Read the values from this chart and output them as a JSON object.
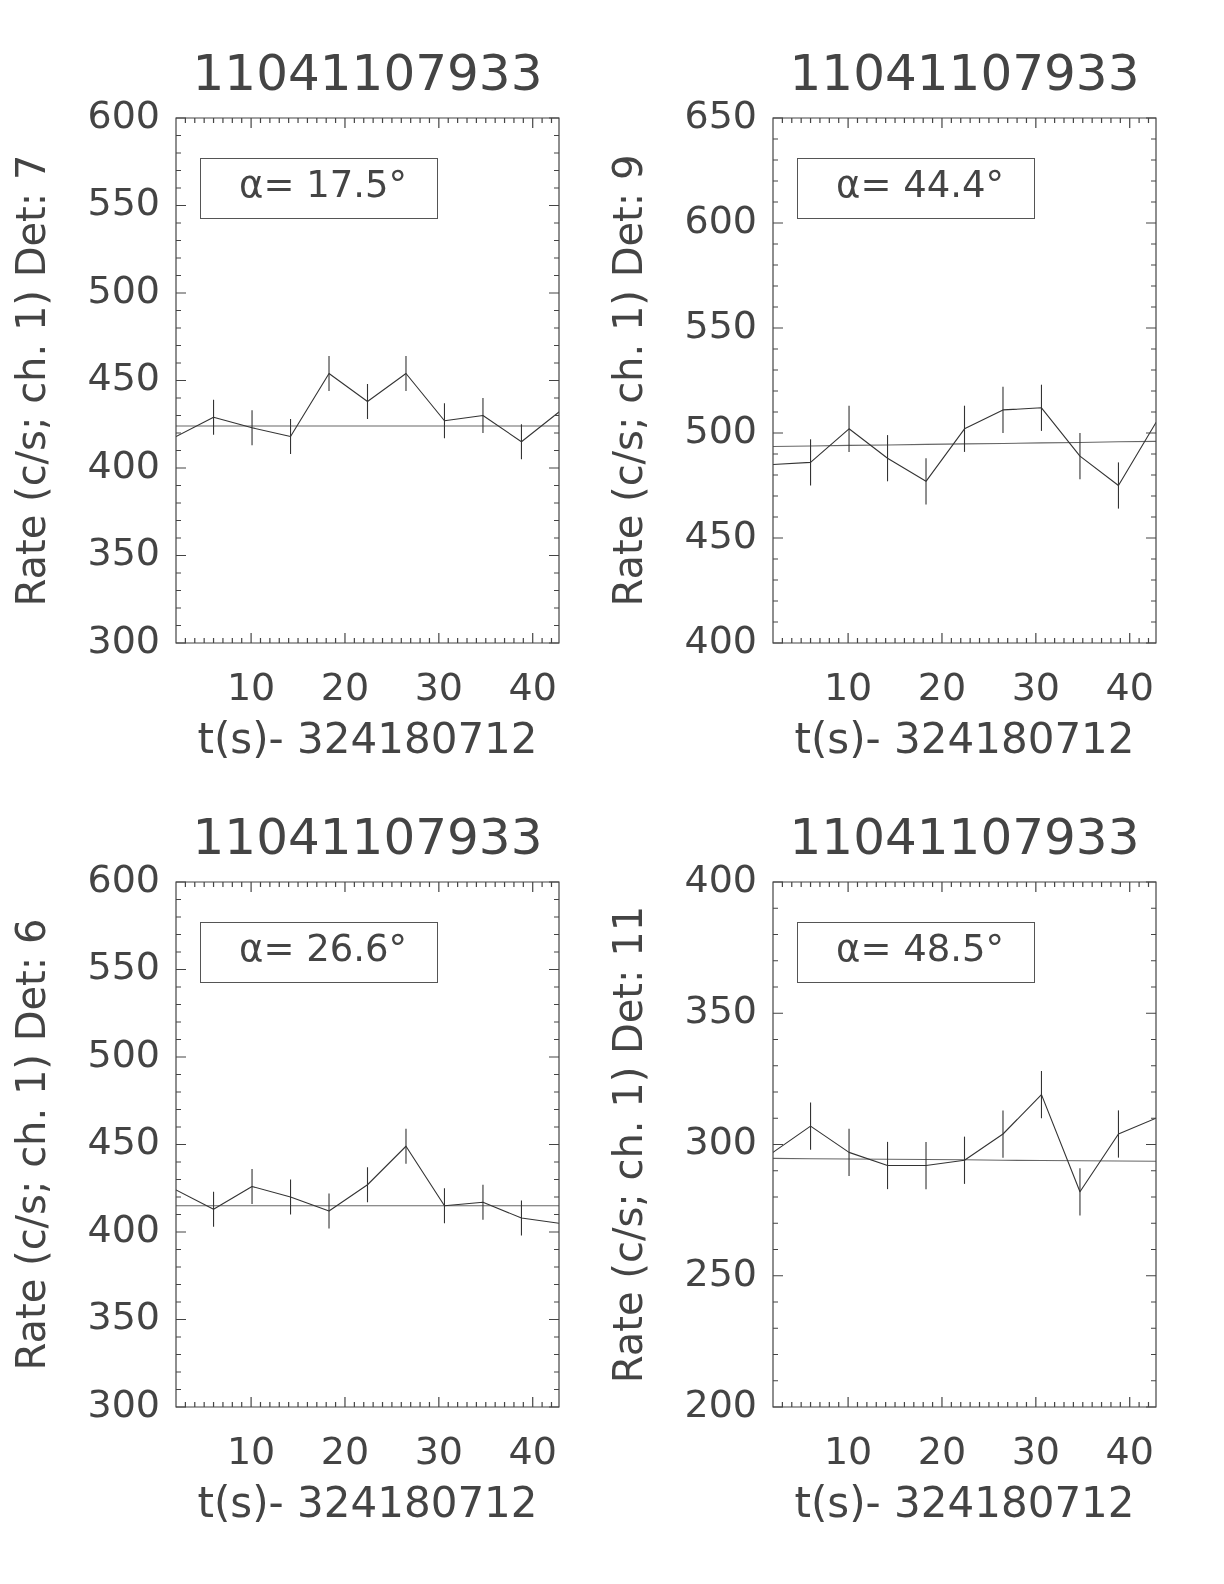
{
  "chart_data": [
    {
      "type": "line",
      "title": "11041107933",
      "xlabel": "t(s)- 324180712",
      "ylabel": "Rate (c/s; ch. 1) Det: 7",
      "annotations": [
        "α= 17.5°"
      ],
      "marker": "none",
      "x": [
        2,
        6,
        10.1,
        14.2,
        18.3,
        22.4,
        26.5,
        30.6,
        34.7,
        38.8,
        42.8
      ],
      "series": [
        {
          "color": "#333333",
          "values": [
            418,
            429,
            423,
            418,
            454,
            438,
            454,
            427,
            430,
            415,
            432
          ],
          "errors": [
            null,
            10,
            10,
            10,
            10,
            10,
            10,
            10,
            10,
            10,
            null
          ]
        },
        {
          "type": "line",
          "color": "#666666",
          "values": [
            424,
            424,
            424,
            424,
            424,
            424,
            424,
            424,
            424,
            424,
            424
          ]
        }
      ],
      "xlim": [
        2,
        42.8
      ],
      "xticks": [
        {
          "value": 3,
          "label": null
        },
        {
          "value": 4,
          "label": null
        },
        {
          "value": 5,
          "label": null
        },
        {
          "value": 6,
          "label": null
        },
        {
          "value": 7,
          "label": null
        },
        {
          "value": 8,
          "label": null
        },
        {
          "value": 9,
          "label": null
        },
        10,
        {
          "value": 11,
          "label": null
        },
        {
          "value": 12,
          "label": null
        },
        {
          "value": 13,
          "label": null
        },
        {
          "value": 14,
          "label": null
        },
        {
          "value": 15,
          "label": null
        },
        {
          "value": 16,
          "label": null
        },
        {
          "value": 17,
          "label": null
        },
        {
          "value": 18,
          "label": null
        },
        {
          "value": 19,
          "label": null
        },
        20,
        {
          "value": 21,
          "label": null
        },
        {
          "value": 22,
          "label": null
        },
        {
          "value": 23,
          "label": null
        },
        {
          "value": 24,
          "label": null
        },
        {
          "value": 25,
          "label": null
        },
        {
          "value": 26,
          "label": null
        },
        {
          "value": 27,
          "label": null
        },
        {
          "value": 28,
          "label": null
        },
        {
          "value": 29,
          "label": null
        },
        30,
        {
          "value": 31,
          "label": null
        },
        {
          "value": 32,
          "label": null
        },
        {
          "value": 33,
          "label": null
        },
        {
          "value": 34,
          "label": null
        },
        {
          "value": 35,
          "label": null
        },
        {
          "value": 36,
          "label": null
        },
        {
          "value": 37,
          "label": null
        },
        {
          "value": 38,
          "label": null
        },
        {
          "value": 39,
          "label": null
        },
        40,
        {
          "value": 41,
          "label": null
        },
        {
          "value": 42,
          "label": null
        }
      ],
      "ylim": [
        300,
        600
      ],
      "yticks": [
        300,
        {
          "value": 310,
          "label": null
        },
        {
          "value": 320,
          "label": null
        },
        {
          "value": 330,
          "label": null
        },
        {
          "value": 340,
          "label": null
        },
        350,
        {
          "value": 360,
          "label": null
        },
        {
          "value": 370,
          "label": null
        },
        {
          "value": 380,
          "label": null
        },
        {
          "value": 390,
          "label": null
        },
        400,
        {
          "value": 410,
          "label": null
        },
        {
          "value": 420,
          "label": null
        },
        {
          "value": 430,
          "label": null
        },
        {
          "value": 440,
          "label": null
        },
        450,
        {
          "value": 460,
          "label": null
        },
        {
          "value": 470,
          "label": null
        },
        {
          "value": 480,
          "label": null
        },
        {
          "value": 490,
          "label": null
        },
        500,
        {
          "value": 510,
          "label": null
        },
        {
          "value": 520,
          "label": null
        },
        {
          "value": 530,
          "label": null
        },
        {
          "value": 540,
          "label": null
        },
        550,
        {
          "value": 560,
          "label": null
        },
        {
          "value": 570,
          "label": null
        },
        {
          "value": 580,
          "label": null
        },
        {
          "value": 590,
          "label": null
        },
        600
      ]
    },
    {
      "type": "line",
      "title": "11041107933",
      "xlabel": "t(s)- 324180712",
      "ylabel": "Rate (c/s; ch. 1) Det: 9",
      "annotations": [
        "α= 44.4°"
      ],
      "marker": "none",
      "x": [
        2,
        6,
        10.1,
        14.2,
        18.3,
        22.4,
        26.5,
        30.6,
        34.7,
        38.8,
        42.8
      ],
      "series": [
        {
          "color": "#333333",
          "values": [
            485,
            486,
            502,
            488,
            477,
            502,
            511,
            512,
            489,
            475,
            505
          ],
          "errors": [
            null,
            11,
            11,
            11,
            11,
            11,
            11,
            11,
            11,
            11,
            null
          ]
        },
        {
          "type": "line",
          "color": "#666666",
          "values": [
            493.6,
            493.8,
            494.1,
            494.3,
            494.6,
            494.8,
            495.0,
            495.3,
            495.5,
            495.8,
            496.0
          ]
        }
      ],
      "xlim": [
        2,
        42.8
      ],
      "xticks": [
        {
          "value": 3,
          "label": null
        },
        {
          "value": 4,
          "label": null
        },
        {
          "value": 5,
          "label": null
        },
        {
          "value": 6,
          "label": null
        },
        {
          "value": 7,
          "label": null
        },
        {
          "value": 8,
          "label": null
        },
        {
          "value": 9,
          "label": null
        },
        10,
        {
          "value": 11,
          "label": null
        },
        {
          "value": 12,
          "label": null
        },
        {
          "value": 13,
          "label": null
        },
        {
          "value": 14,
          "label": null
        },
        {
          "value": 15,
          "label": null
        },
        {
          "value": 16,
          "label": null
        },
        {
          "value": 17,
          "label": null
        },
        {
          "value": 18,
          "label": null
        },
        {
          "value": 19,
          "label": null
        },
        20,
        {
          "value": 21,
          "label": null
        },
        {
          "value": 22,
          "label": null
        },
        {
          "value": 23,
          "label": null
        },
        {
          "value": 24,
          "label": null
        },
        {
          "value": 25,
          "label": null
        },
        {
          "value": 26,
          "label": null
        },
        {
          "value": 27,
          "label": null
        },
        {
          "value": 28,
          "label": null
        },
        {
          "value": 29,
          "label": null
        },
        30,
        {
          "value": 31,
          "label": null
        },
        {
          "value": 32,
          "label": null
        },
        {
          "value": 33,
          "label": null
        },
        {
          "value": 34,
          "label": null
        },
        {
          "value": 35,
          "label": null
        },
        {
          "value": 36,
          "label": null
        },
        {
          "value": 37,
          "label": null
        },
        {
          "value": 38,
          "label": null
        },
        {
          "value": 39,
          "label": null
        },
        40,
        {
          "value": 41,
          "label": null
        },
        {
          "value": 42,
          "label": null
        }
      ],
      "ylim": [
        400,
        650
      ],
      "yticks": [
        400,
        {
          "value": 410,
          "label": null
        },
        {
          "value": 420,
          "label": null
        },
        {
          "value": 430,
          "label": null
        },
        {
          "value": 440,
          "label": null
        },
        450,
        {
          "value": 460,
          "label": null
        },
        {
          "value": 470,
          "label": null
        },
        {
          "value": 480,
          "label": null
        },
        {
          "value": 490,
          "label": null
        },
        500,
        {
          "value": 510,
          "label": null
        },
        {
          "value": 520,
          "label": null
        },
        {
          "value": 530,
          "label": null
        },
        {
          "value": 540,
          "label": null
        },
        550,
        {
          "value": 560,
          "label": null
        },
        {
          "value": 570,
          "label": null
        },
        {
          "value": 580,
          "label": null
        },
        {
          "value": 590,
          "label": null
        },
        600,
        {
          "value": 610,
          "label": null
        },
        {
          "value": 620,
          "label": null
        },
        {
          "value": 630,
          "label": null
        },
        {
          "value": 640,
          "label": null
        },
        650
      ]
    },
    {
      "type": "line",
      "title": "11041107933",
      "xlabel": "t(s)- 324180712",
      "ylabel": "Rate (c/s; ch. 1) Det: 6",
      "annotations": [
        "α= 26.6°"
      ],
      "marker": "none",
      "x": [
        2,
        6,
        10.1,
        14.2,
        18.3,
        22.4,
        26.5,
        30.6,
        34.7,
        38.8,
        42.8
      ],
      "series": [
        {
          "color": "#333333",
          "values": [
            424,
            413,
            426,
            420,
            412,
            427,
            449,
            415,
            417,
            408,
            405
          ],
          "errors": [
            null,
            10,
            10,
            10,
            10,
            10,
            10,
            10,
            10,
            10,
            null
          ]
        },
        {
          "type": "line",
          "color": "#666666",
          "values": [
            415,
            415,
            415,
            415,
            415,
            415,
            415,
            415,
            415,
            415,
            415
          ]
        }
      ],
      "xlim": [
        2,
        42.8
      ],
      "xticks": [
        {
          "value": 3,
          "label": null
        },
        {
          "value": 4,
          "label": null
        },
        {
          "value": 5,
          "label": null
        },
        {
          "value": 6,
          "label": null
        },
        {
          "value": 7,
          "label": null
        },
        {
          "value": 8,
          "label": null
        },
        {
          "value": 9,
          "label": null
        },
        10,
        {
          "value": 11,
          "label": null
        },
        {
          "value": 12,
          "label": null
        },
        {
          "value": 13,
          "label": null
        },
        {
          "value": 14,
          "label": null
        },
        {
          "value": 15,
          "label": null
        },
        {
          "value": 16,
          "label": null
        },
        {
          "value": 17,
          "label": null
        },
        {
          "value": 18,
          "label": null
        },
        {
          "value": 19,
          "label": null
        },
        20,
        {
          "value": 21,
          "label": null
        },
        {
          "value": 22,
          "label": null
        },
        {
          "value": 23,
          "label": null
        },
        {
          "value": 24,
          "label": null
        },
        {
          "value": 25,
          "label": null
        },
        {
          "value": 26,
          "label": null
        },
        {
          "value": 27,
          "label": null
        },
        {
          "value": 28,
          "label": null
        },
        {
          "value": 29,
          "label": null
        },
        30,
        {
          "value": 31,
          "label": null
        },
        {
          "value": 32,
          "label": null
        },
        {
          "value": 33,
          "label": null
        },
        {
          "value": 34,
          "label": null
        },
        {
          "value": 35,
          "label": null
        },
        {
          "value": 36,
          "label": null
        },
        {
          "value": 37,
          "label": null
        },
        {
          "value": 38,
          "label": null
        },
        {
          "value": 39,
          "label": null
        },
        40,
        {
          "value": 41,
          "label": null
        },
        {
          "value": 42,
          "label": null
        }
      ],
      "ylim": [
        300,
        600
      ],
      "yticks": [
        300,
        {
          "value": 310,
          "label": null
        },
        {
          "value": 320,
          "label": null
        },
        {
          "value": 330,
          "label": null
        },
        {
          "value": 340,
          "label": null
        },
        350,
        {
          "value": 360,
          "label": null
        },
        {
          "value": 370,
          "label": null
        },
        {
          "value": 380,
          "label": null
        },
        {
          "value": 390,
          "label": null
        },
        400,
        {
          "value": 410,
          "label": null
        },
        {
          "value": 420,
          "label": null
        },
        {
          "value": 430,
          "label": null
        },
        {
          "value": 440,
          "label": null
        },
        450,
        {
          "value": 460,
          "label": null
        },
        {
          "value": 470,
          "label": null
        },
        {
          "value": 480,
          "label": null
        },
        {
          "value": 490,
          "label": null
        },
        500,
        {
          "value": 510,
          "label": null
        },
        {
          "value": 520,
          "label": null
        },
        {
          "value": 530,
          "label": null
        },
        {
          "value": 540,
          "label": null
        },
        550,
        {
          "value": 560,
          "label": null
        },
        {
          "value": 570,
          "label": null
        },
        {
          "value": 580,
          "label": null
        },
        {
          "value": 590,
          "label": null
        },
        600
      ]
    },
    {
      "type": "line",
      "title": "11041107933",
      "xlabel": "t(s)- 324180712",
      "ylabel": "Rate (c/s; ch. 1) Det: 11",
      "annotations": [
        "α= 48.5°"
      ],
      "marker": "none",
      "x": [
        2,
        6,
        10.1,
        14.2,
        18.3,
        22.4,
        26.5,
        30.6,
        34.7,
        38.8,
        42.8
      ],
      "series": [
        {
          "color": "#333333",
          "values": [
            297,
            307,
            297,
            292,
            292,
            294,
            304,
            319,
            282,
            304,
            310
          ],
          "errors": [
            null,
            9,
            9,
            9,
            9,
            9,
            9,
            9,
            9,
            9,
            null
          ]
        },
        {
          "type": "line",
          "color": "#666666",
          "values": [
            294.7,
            294.6,
            294.5,
            294.4,
            294.3,
            294.2,
            294.0,
            293.9,
            293.8,
            293.7,
            293.6
          ]
        }
      ],
      "xlim": [
        2,
        42.8
      ],
      "xticks": [
        {
          "value": 3,
          "label": null
        },
        {
          "value": 4,
          "label": null
        },
        {
          "value": 5,
          "label": null
        },
        {
          "value": 6,
          "label": null
        },
        {
          "value": 7,
          "label": null
        },
        {
          "value": 8,
          "label": null
        },
        {
          "value": 9,
          "label": null
        },
        10,
        {
          "value": 11,
          "label": null
        },
        {
          "value": 12,
          "label": null
        },
        {
          "value": 13,
          "label": null
        },
        {
          "value": 14,
          "label": null
        },
        {
          "value": 15,
          "label": null
        },
        {
          "value": 16,
          "label": null
        },
        {
          "value": 17,
          "label": null
        },
        {
          "value": 18,
          "label": null
        },
        {
          "value": 19,
          "label": null
        },
        20,
        {
          "value": 21,
          "label": null
        },
        {
          "value": 22,
          "label": null
        },
        {
          "value": 23,
          "label": null
        },
        {
          "value": 24,
          "label": null
        },
        {
          "value": 25,
          "label": null
        },
        {
          "value": 26,
          "label": null
        },
        {
          "value": 27,
          "label": null
        },
        {
          "value": 28,
          "label": null
        },
        {
          "value": 29,
          "label": null
        },
        30,
        {
          "value": 31,
          "label": null
        },
        {
          "value": 32,
          "label": null
        },
        {
          "value": 33,
          "label": null
        },
        {
          "value": 34,
          "label": null
        },
        {
          "value": 35,
          "label": null
        },
        {
          "value": 36,
          "label": null
        },
        {
          "value": 37,
          "label": null
        },
        {
          "value": 38,
          "label": null
        },
        {
          "value": 39,
          "label": null
        },
        40,
        {
          "value": 41,
          "label": null
        },
        {
          "value": 42,
          "label": null
        }
      ],
      "ylim": [
        200,
        400
      ],
      "yticks": [
        200,
        {
          "value": 210,
          "label": null
        },
        {
          "value": 220,
          "label": null
        },
        {
          "value": 230,
          "label": null
        },
        {
          "value": 240,
          "label": null
        },
        250,
        {
          "value": 260,
          "label": null
        },
        {
          "value": 270,
          "label": null
        },
        {
          "value": 280,
          "label": null
        },
        {
          "value": 290,
          "label": null
        },
        300,
        {
          "value": 310,
          "label": null
        },
        {
          "value": 320,
          "label": null
        },
        {
          "value": 330,
          "label": null
        },
        {
          "value": 340,
          "label": null
        },
        350,
        {
          "value": 360,
          "label": null
        },
        {
          "value": 370,
          "label": null
        },
        {
          "value": 380,
          "label": null
        },
        {
          "value": 390,
          "label": null
        },
        400
      ]
    }
  ]
}
